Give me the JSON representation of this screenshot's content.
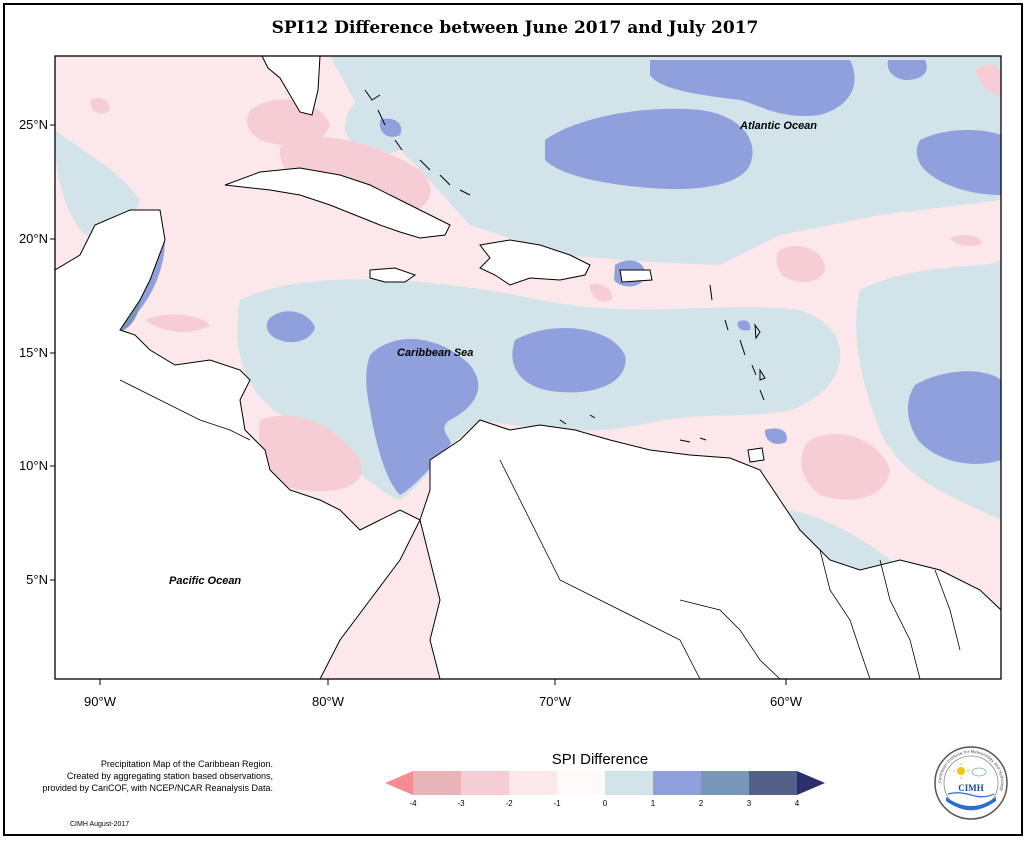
{
  "title": "SPI12 Difference between June 2017 and July 2017",
  "y_ticks": [
    "25°N",
    "20°N",
    "15°N",
    "10°N",
    "5°N"
  ],
  "x_ticks": [
    "90°W",
    "80°W",
    "70°W",
    "60°W"
  ],
  "labels": {
    "atlantic": "Atlantic Ocean",
    "caribbean": "Caribbean Sea",
    "pacific": "Pacific Ocean"
  },
  "description": [
    "Precipitation Map of the Caribbean Region.",
    "Created by aggregating station based observations,",
    "provided by CariCOF, with NCEP/NCAR Reanalysis Data."
  ],
  "credit": "CIMH August-2017",
  "legend": {
    "title": "SPI Difference",
    "ticks": [
      "-4",
      "-3",
      "-2",
      "-1",
      "0",
      "1",
      "2",
      "3",
      "4"
    ],
    "colors": [
      "#f48c94",
      "#e8b4b8",
      "#f6cdd4",
      "#fce7ea",
      "#d2e4ea",
      "#8fa0dc",
      "#7896b8",
      "#556088",
      "#2b2f6e"
    ]
  },
  "logo": {
    "text": "CIMH",
    "ring_text": "Caribbean Institute for Meteorology and Hydrology"
  },
  "colors": {
    "dry_light": "#fce7ea",
    "dry_medium": "#f6cdd4",
    "wet_light": "#d2e4ea",
    "wet_medium": "#8fa0dc",
    "wet_strong": "#7896b8",
    "land": "#ffffff",
    "coast": "#000000"
  }
}
